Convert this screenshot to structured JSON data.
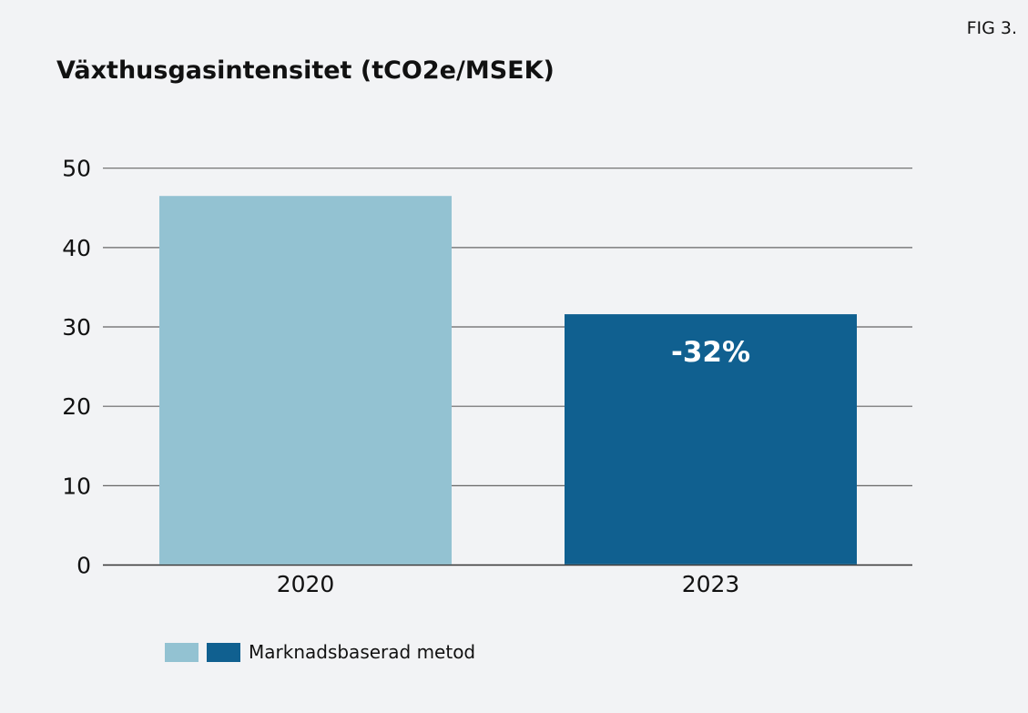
{
  "fig_label": "FIG 3.",
  "chart_data": {
    "type": "bar",
    "title": "Växthusgasintensitet (tCO2e/MSEK)",
    "categories": [
      "2020",
      "2023"
    ],
    "series": [
      {
        "name": "Marknadsbaserad metod",
        "values": [
          46.5,
          31.6
        ]
      }
    ],
    "bar_colors": [
      "#93c2d2",
      "#106090"
    ],
    "annotations": [
      {
        "category": "2023",
        "text": "-32%"
      }
    ],
    "ylim": [
      0,
      50
    ],
    "yticks": [
      0,
      10,
      20,
      30,
      40,
      50
    ],
    "grid": true,
    "xlabel": "",
    "ylabel": "",
    "legend": {
      "placement": "bottom-left",
      "label": "Marknadsbaserad metod"
    }
  }
}
